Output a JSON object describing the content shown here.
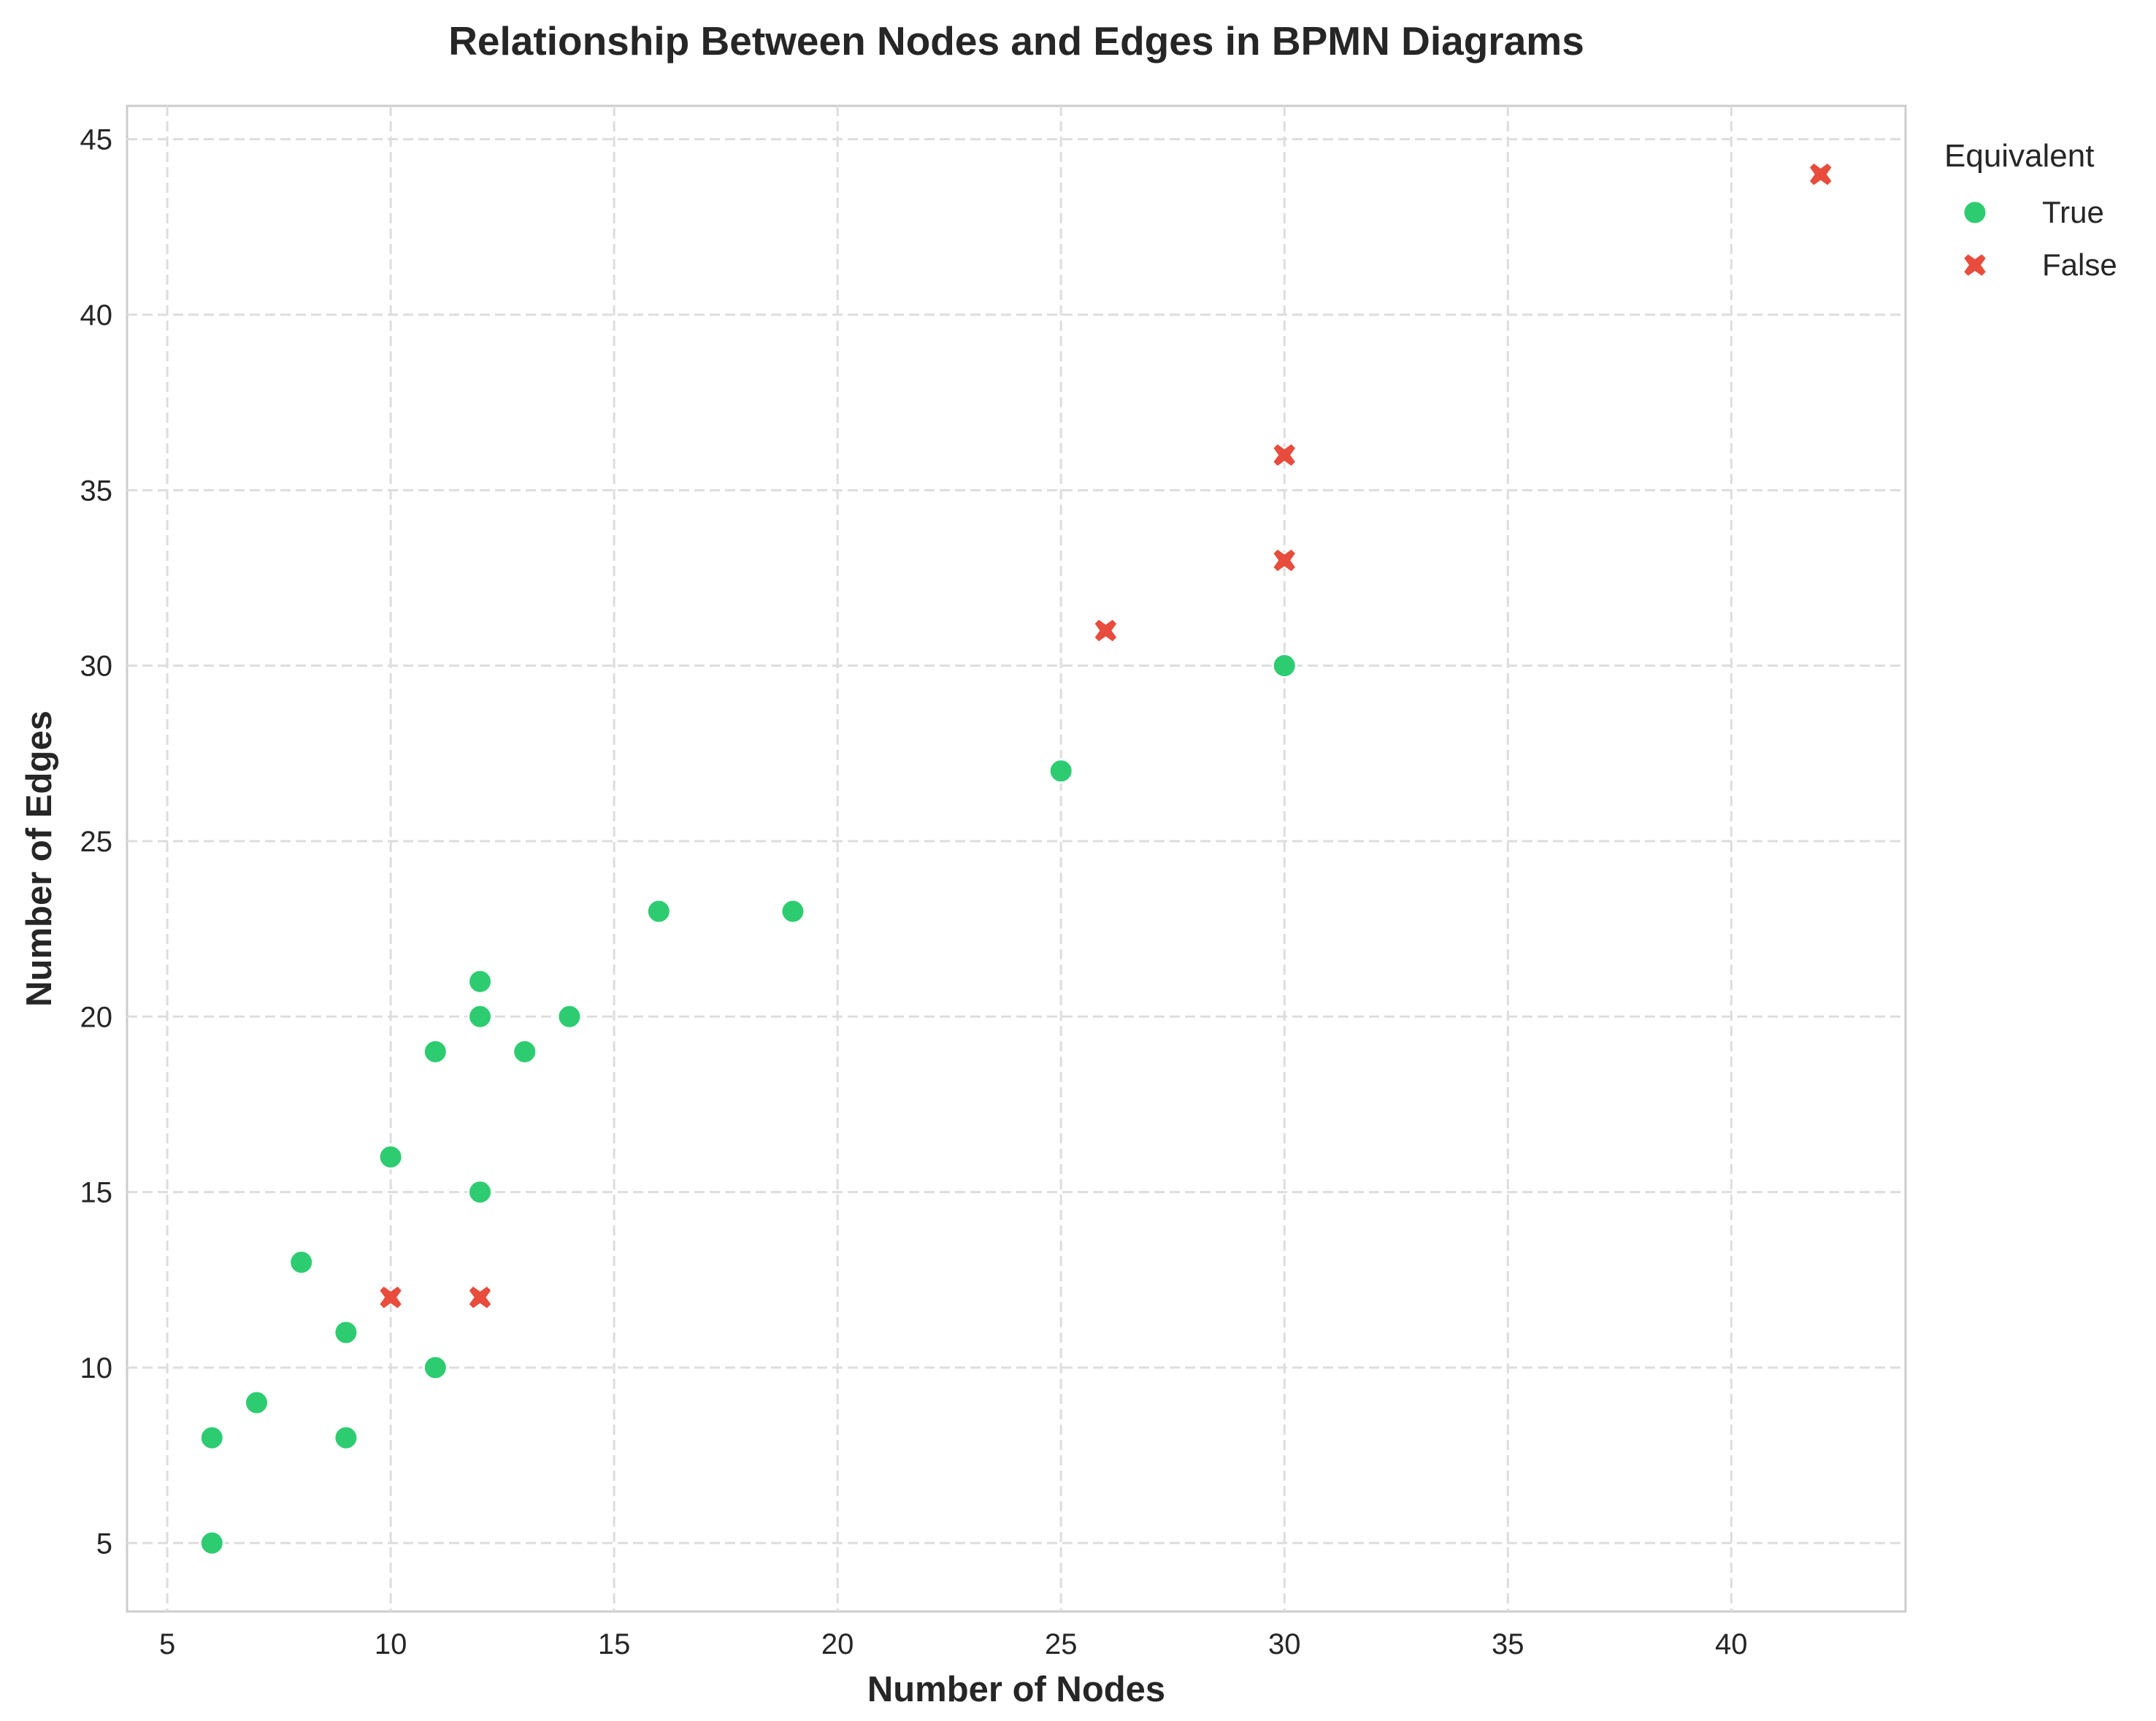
{
  "chart_data": {
    "type": "scatter",
    "title": "Relationship Between Nodes and Edges in BPMN Diagrams",
    "xlabel": "Number of Nodes",
    "ylabel": "Number of Edges",
    "xlim": [
      4.1,
      43.9
    ],
    "ylim": [
      3.05,
      45.95
    ],
    "xticks": [
      5,
      10,
      15,
      20,
      25,
      30,
      35,
      40
    ],
    "yticks": [
      5,
      10,
      15,
      20,
      25,
      30,
      35,
      40,
      45
    ],
    "grid": true,
    "legend": {
      "title": "Equivalent",
      "position": "outside-top-right"
    },
    "series": [
      {
        "name": "True",
        "marker": "circle",
        "color": "#2ecc71",
        "x": [
          6,
          6,
          7,
          8,
          9,
          9,
          10,
          11,
          11,
          12,
          12,
          12,
          13,
          14,
          16,
          19,
          25,
          30
        ],
        "y": [
          8,
          5,
          9,
          13,
          11,
          8,
          16,
          19,
          10,
          21,
          20,
          15,
          19,
          20,
          23,
          23,
          27,
          30
        ]
      },
      {
        "name": "False",
        "marker": "x",
        "color": "#e74c3c",
        "x": [
          10,
          12,
          26,
          30,
          30,
          42
        ],
        "y": [
          12,
          12,
          31,
          33,
          36,
          44
        ]
      }
    ]
  }
}
